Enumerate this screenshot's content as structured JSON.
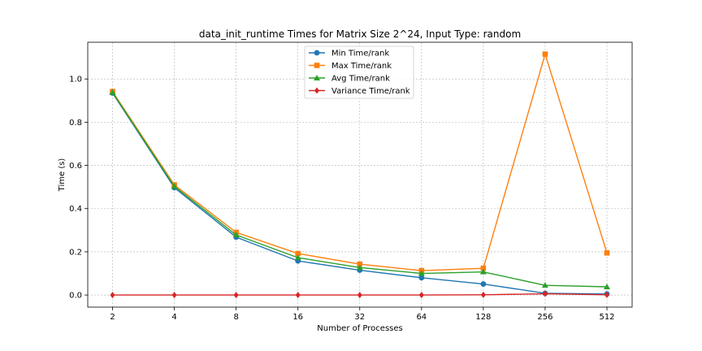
{
  "chart_data": {
    "type": "line",
    "title": "data_init_runtime Times for Matrix Size 2^24, Input Type: random",
    "xlabel": "Number of Processes",
    "ylabel": "Time (s)",
    "categories": [
      "2",
      "4",
      "8",
      "16",
      "32",
      "64",
      "128",
      "256",
      "512"
    ],
    "ylim": [
      -0.056,
      1.17
    ],
    "yticks": [
      0.0,
      0.2,
      0.4,
      0.6,
      0.8,
      1.0
    ],
    "grid": true,
    "legend_position": "top-center",
    "series": [
      {
        "name": "Min Time/rank",
        "color": "#1f77b4",
        "marker": "circle",
        "values": [
          0.935,
          0.497,
          0.268,
          0.158,
          0.115,
          0.08,
          0.051,
          0.008,
          0.005
        ]
      },
      {
        "name": "Max Time/rank",
        "color": "#ff7f0e",
        "marker": "square",
        "values": [
          0.942,
          0.51,
          0.29,
          0.192,
          0.143,
          0.113,
          0.124,
          1.115,
          0.195
        ]
      },
      {
        "name": "Avg Time/rank",
        "color": "#2ca02c",
        "marker": "triangle",
        "values": [
          0.938,
          0.503,
          0.278,
          0.173,
          0.127,
          0.1,
          0.107,
          0.045,
          0.038
        ]
      },
      {
        "name": "Variance Time/rank",
        "color": "#d62728",
        "marker": "diamond",
        "values": [
          0.0,
          0.0,
          0.0,
          0.0,
          0.0,
          0.0,
          0.001,
          0.006,
          0.001
        ]
      }
    ]
  }
}
